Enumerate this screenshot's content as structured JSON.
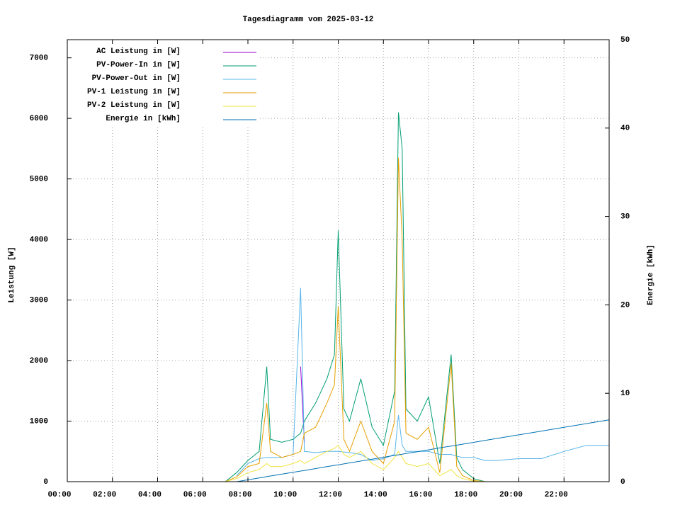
{
  "chart_data": {
    "type": "line",
    "title": "Tagesdiagramm vom 2025-03-12",
    "y_label": "Leistung [W]",
    "y2_label": "Energie [kWh]",
    "x": [
      "00:00",
      "06:00",
      "07:00",
      "07:30",
      "08:00",
      "08:30",
      "08:50",
      "09:00",
      "09:30",
      "10:00",
      "10:20",
      "10:30",
      "11:00",
      "11:30",
      "11:50",
      "12:00",
      "12:15",
      "12:30",
      "13:00",
      "13:30",
      "14:00",
      "14:30",
      "14:40",
      "14:50",
      "15:00",
      "15:30",
      "16:00",
      "16:30",
      "17:00",
      "17:15",
      "17:30",
      "18:00",
      "18:30",
      "19:00",
      "20:00",
      "21:00",
      "22:00",
      "23:00",
      "23:59"
    ],
    "xlim": [
      "00:00",
      "24:00"
    ],
    "xticks": [
      "00:00",
      "02:00",
      "04:00",
      "06:00",
      "08:00",
      "10:00",
      "12:00",
      "14:00",
      "16:00",
      "18:00",
      "20:00",
      "22:00"
    ],
    "ylim": [
      0,
      7300
    ],
    "yticks": [
      0,
      1000,
      2000,
      3000,
      4000,
      5000,
      6000,
      7000
    ],
    "y2lim": [
      0,
      50
    ],
    "y2ticks": [
      0,
      10,
      20,
      30,
      40,
      50
    ],
    "grid": true,
    "legend": "top-left",
    "series": [
      {
        "name": "AC Leistung in [W]",
        "color": "#9400d3",
        "values": [
          null,
          null,
          null,
          null,
          null,
          null,
          null,
          null,
          null,
          null,
          1900,
          650,
          null,
          null,
          null,
          null,
          null,
          null,
          null,
          null,
          null,
          null,
          null,
          null,
          null,
          null,
          null,
          null,
          null,
          null,
          null,
          null,
          null,
          null,
          null,
          null,
          null,
          null,
          null
        ]
      },
      {
        "name": "PV-Power-In in [W]",
        "color": "#009e73",
        "values": [
          0,
          0,
          0,
          150,
          350,
          500,
          1900,
          700,
          650,
          700,
          800,
          1000,
          1300,
          1700,
          2100,
          4150,
          1200,
          1000,
          1700,
          900,
          600,
          1500,
          6100,
          5500,
          1200,
          1000,
          1400,
          300,
          2100,
          400,
          200,
          50,
          0,
          0,
          0,
          0,
          0,
          0,
          0
        ]
      },
      {
        "name": "PV-Power-Out in [W]",
        "color": "#56b4e9",
        "values": [
          null,
          null,
          null,
          100,
          300,
          380,
          400,
          400,
          400,
          450,
          3200,
          500,
          480,
          500,
          500,
          500,
          490,
          480,
          450,
          350,
          380,
          450,
          1100,
          600,
          500,
          500,
          500,
          450,
          450,
          420,
          400,
          400,
          350,
          350,
          380,
          380,
          500,
          600,
          600
        ]
      },
      {
        "name": "PV-1 Leistung in [W]",
        "color": "#e69f00",
        "values": [
          0,
          0,
          0,
          80,
          250,
          300,
          1300,
          500,
          400,
          450,
          500,
          800,
          900,
          1300,
          1600,
          2900,
          700,
          500,
          1000,
          500,
          300,
          1000,
          5350,
          4000,
          800,
          700,
          900,
          150,
          1950,
          250,
          100,
          20,
          0,
          0,
          0,
          0,
          0,
          0,
          0
        ]
      },
      {
        "name": "PV-2 Leistung in [W]",
        "color": "#f0e442",
        "values": [
          0,
          0,
          0,
          50,
          150,
          200,
          300,
          250,
          250,
          300,
          350,
          300,
          400,
          500,
          550,
          600,
          450,
          400,
          500,
          300,
          200,
          400,
          500,
          400,
          300,
          250,
          300,
          100,
          200,
          100,
          50,
          10,
          0,
          0,
          0,
          0,
          0,
          0,
          0
        ]
      },
      {
        "name": "Energie in [kWh]",
        "color": "#0072b2",
        "axis": "y2",
        "values": [
          null,
          null,
          null,
          0,
          0.21,
          0.42,
          0.57,
          0.64,
          0.85,
          1.06,
          1.2,
          1.27,
          1.48,
          1.7,
          1.84,
          1.91,
          2.01,
          2.12,
          2.33,
          2.54,
          2.76,
          2.97,
          3.04,
          3.11,
          3.18,
          3.39,
          3.6,
          3.82,
          4.03,
          4.13,
          4.24,
          4.45,
          4.66,
          4.88,
          5.3,
          5.72,
          6.15,
          6.57,
          6.99
        ]
      }
    ]
  }
}
